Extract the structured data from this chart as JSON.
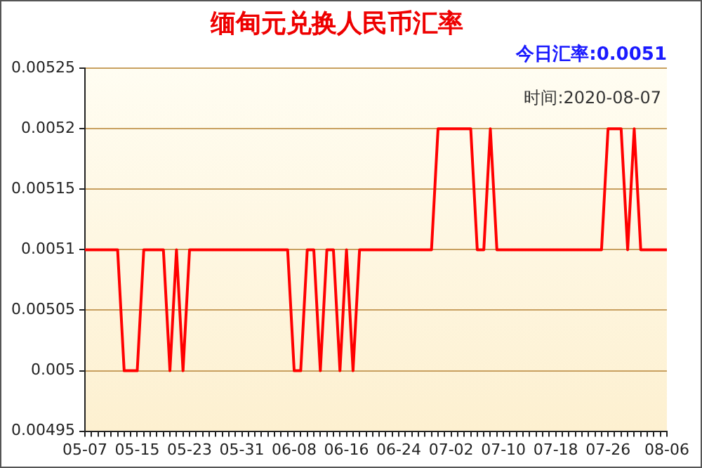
{
  "chart_data": {
    "type": "line",
    "title": "缅甸元兑换人民币汇率",
    "annotations": [
      "今日汇率:0.0051",
      "时间:2020-08-07"
    ],
    "categories": [
      "05-07",
      null,
      null,
      null,
      null,
      null,
      null,
      null,
      "05-15",
      null,
      null,
      null,
      null,
      null,
      null,
      null,
      "05-23",
      null,
      null,
      null,
      null,
      null,
      null,
      null,
      "05-31",
      null,
      null,
      null,
      null,
      null,
      null,
      null,
      "06-08",
      null,
      null,
      null,
      null,
      null,
      null,
      null,
      "06-16",
      null,
      null,
      null,
      null,
      null,
      null,
      null,
      "06-24",
      null,
      null,
      null,
      null,
      null,
      null,
      null,
      "07-02",
      null,
      null,
      null,
      null,
      null,
      null,
      null,
      "07-10",
      null,
      null,
      null,
      null,
      null,
      null,
      null,
      "07-18",
      null,
      null,
      null,
      null,
      null,
      null,
      null,
      "07-26",
      null,
      null,
      null,
      null,
      null,
      null,
      null,
      null,
      "08-06"
    ],
    "series": [
      {
        "color": "#ff0000",
        "values": [
          0.0051,
          0.0051,
          0.0051,
          0.0051,
          0.0051,
          0.0051,
          0.005,
          0.005,
          0.005,
          0.0051,
          0.0051,
          0.0051,
          0.0051,
          0.005,
          0.0051,
          0.005,
          0.0051,
          0.0051,
          0.0051,
          0.0051,
          0.0051,
          0.0051,
          0.0051,
          0.0051,
          0.0051,
          0.0051,
          0.0051,
          0.0051,
          0.0051,
          0.0051,
          0.0051,
          0.0051,
          0.005,
          0.005,
          0.0051,
          0.0051,
          0.005,
          0.0051,
          0.0051,
          0.005,
          0.0051,
          0.005,
          0.0051,
          0.0051,
          0.0051,
          0.0051,
          0.0051,
          0.0051,
          0.0051,
          0.0051,
          0.0051,
          0.0051,
          0.0051,
          0.0051,
          0.0052,
          0.0052,
          0.0052,
          0.0052,
          0.0052,
          0.0052,
          0.0051,
          0.0051,
          0.0052,
          0.0051,
          0.0051,
          0.0051,
          0.0051,
          0.0051,
          0.0051,
          0.0051,
          0.0051,
          0.0051,
          0.0051,
          0.0051,
          0.0051,
          0.0051,
          0.0051,
          0.0051,
          0.0051,
          0.0051,
          0.0052,
          0.0052,
          0.0052,
          0.0051,
          0.0052,
          0.0051,
          0.0051,
          0.0051,
          0.0051,
          0.0051
        ]
      }
    ],
    "ylim": [
      0.00495,
      0.00525
    ],
    "yticks": [
      0.00495,
      0.005,
      0.00505,
      0.0051,
      0.00515,
      0.0052,
      0.00525
    ],
    "grid": "y",
    "legend": false,
    "marker": "none",
    "line_style": "solid"
  }
}
